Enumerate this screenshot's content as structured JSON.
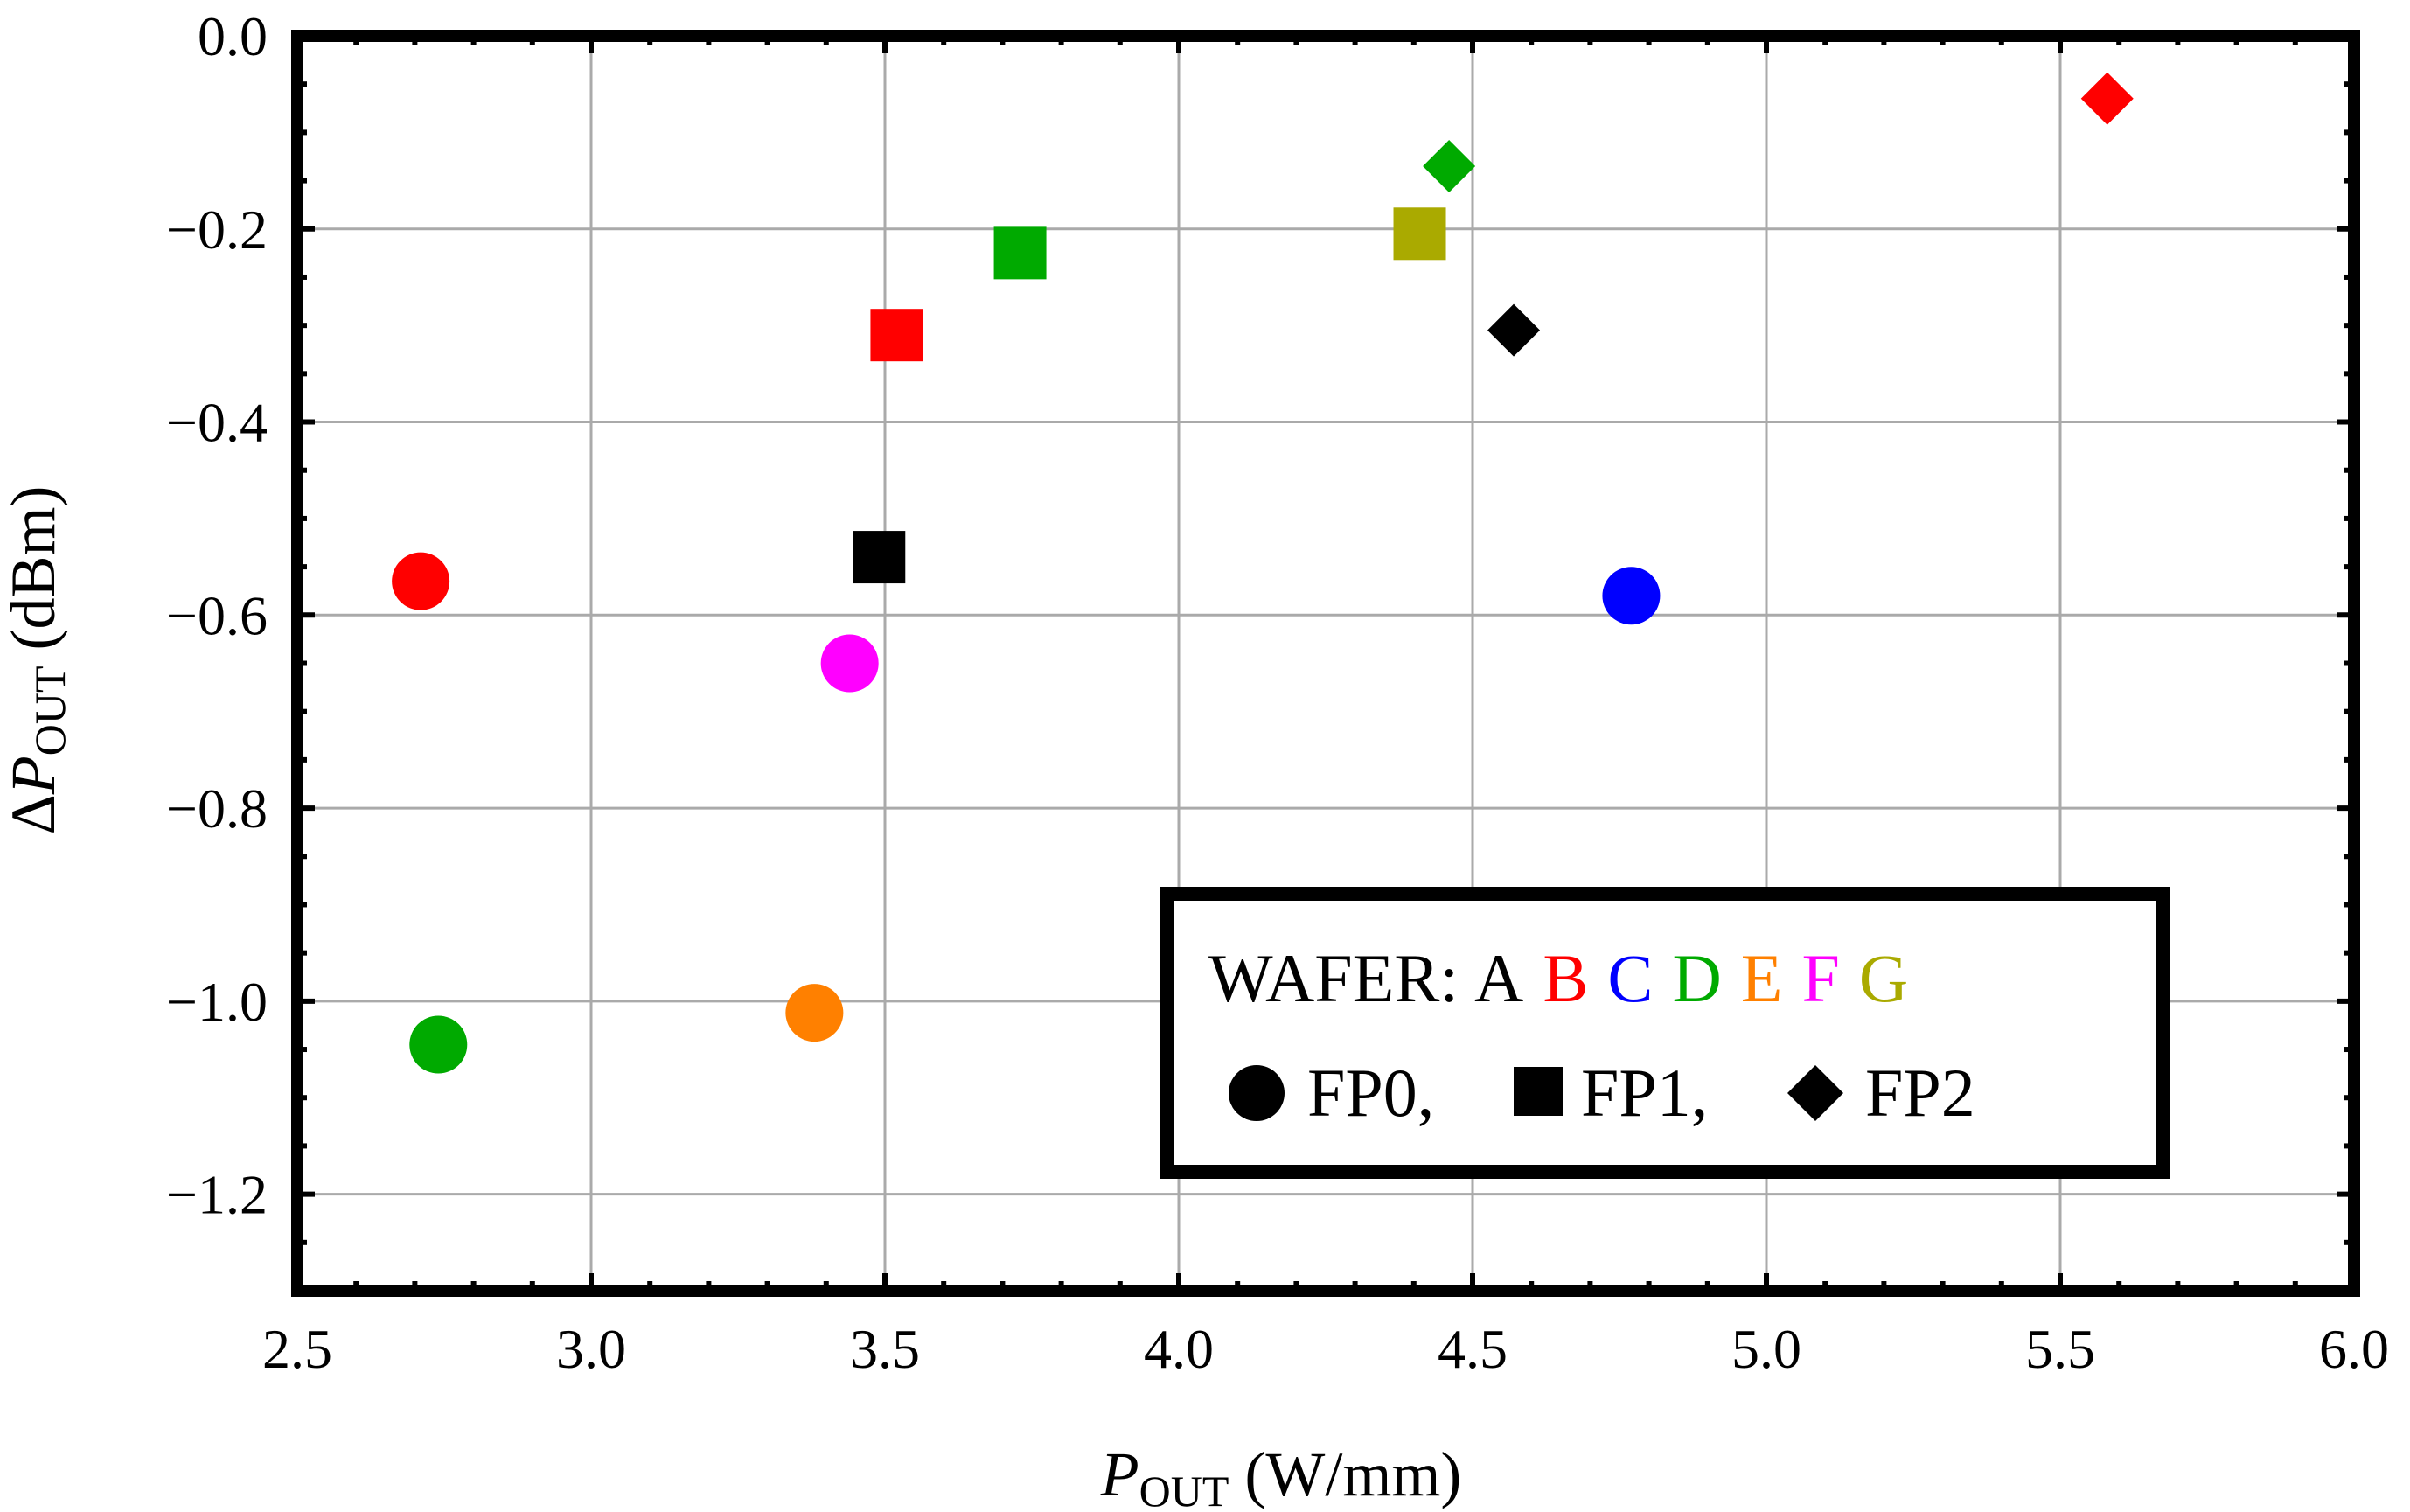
{
  "chart_data": {
    "type": "scatter",
    "title": "",
    "xlabel": {
      "main": "P",
      "sub": "OUT",
      "unit": " (W/mm)"
    },
    "ylabel": {
      "delta": "Δ",
      "main": "P",
      "sub": "OUT",
      "unit": " (dBm)"
    },
    "xlim": [
      2.5,
      6.0
    ],
    "ylim": [
      -1.3,
      0.0
    ],
    "xticks": [
      2.5,
      3.0,
      3.5,
      4.0,
      4.5,
      5.0,
      5.5,
      6.0
    ],
    "yticks": [
      0.0,
      -0.2,
      -0.4,
      -0.6,
      -0.8,
      -1.0,
      -1.2
    ],
    "xtick_labels": [
      "2.5",
      "3.0",
      "3.5",
      "4.0",
      "4.5",
      "5.0",
      "5.5",
      "6.0"
    ],
    "ytick_labels": [
      "0.0",
      "−0.2",
      "−0.4",
      "−0.6",
      "−0.8",
      "−1.0",
      "−1.2"
    ],
    "grid": true,
    "wafer_colors": {
      "A": "#000000",
      "B": "#ff0000",
      "C": "#0000ff",
      "D": "#00aa00",
      "E": "#ff8000",
      "F": "#ff00ff",
      "G": "#aaaa00"
    },
    "points": [
      {
        "wafer": "B",
        "marker": "FP0",
        "x": 2.71,
        "y": -0.565
      },
      {
        "wafer": "D",
        "marker": "FP0",
        "x": 2.74,
        "y": -1.045
      },
      {
        "wafer": "E",
        "marker": "FP0",
        "x": 3.38,
        "y": -1.012
      },
      {
        "wafer": "F",
        "marker": "FP0",
        "x": 3.44,
        "y": -0.65
      },
      {
        "wafer": "C",
        "marker": "FP0",
        "x": 4.77,
        "y": -0.58
      },
      {
        "wafer": "A",
        "marker": "FP1",
        "x": 3.49,
        "y": -0.54
      },
      {
        "wafer": "B",
        "marker": "FP1",
        "x": 3.52,
        "y": -0.31
      },
      {
        "wafer": "D",
        "marker": "FP1",
        "x": 3.73,
        "y": -0.225
      },
      {
        "wafer": "G",
        "marker": "FP1",
        "x": 4.41,
        "y": -0.205
      },
      {
        "wafer": "D",
        "marker": "FP2",
        "x": 4.46,
        "y": -0.135
      },
      {
        "wafer": "A",
        "marker": "FP2",
        "x": 4.57,
        "y": -0.305
      },
      {
        "wafer": "B",
        "marker": "FP2",
        "x": 5.58,
        "y": -0.065
      }
    ],
    "legend": {
      "placement": "bottom-right",
      "wafer_label": "WAFER:",
      "wafers": [
        "A",
        "B",
        "C",
        "D",
        "E",
        "F",
        "G"
      ],
      "markers": [
        {
          "shape": "circle",
          "label": "FP0,"
        },
        {
          "shape": "square",
          "label": "FP1,"
        },
        {
          "shape": "diamond",
          "label": "FP2"
        }
      ]
    }
  }
}
